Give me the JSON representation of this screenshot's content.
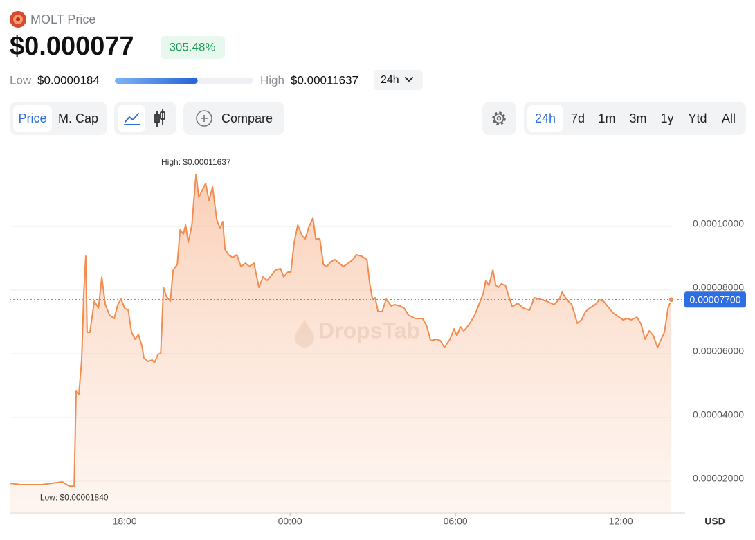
{
  "header": {
    "coin": "MOLT Price",
    "price": "$0.000077",
    "change": "305.48%",
    "low_label": "Low",
    "low": "$0.0000184",
    "high_label": "High",
    "high": "$0.00011637",
    "range_select": "24h"
  },
  "toolbar": {
    "metrics": [
      "Price",
      "M. Cap"
    ],
    "compare": "Compare",
    "ranges": [
      "24h",
      "7d",
      "1m",
      "3m",
      "1y",
      "Ytd",
      "All"
    ]
  },
  "chart_data": {
    "type": "area",
    "color": "#f28c4f",
    "x": [
      13.83,
      14.23,
      14.99,
      15.74,
      15.99,
      16.17,
      16.24,
      16.34,
      16.44,
      16.52,
      16.59,
      16.64,
      16.74,
      16.9,
      17.05,
      17.17,
      17.3,
      17.45,
      17.62,
      17.75,
      17.87,
      18.0,
      18.13,
      18.25,
      18.38,
      18.5,
      18.63,
      18.7,
      18.85,
      19.0,
      19.08,
      19.21,
      19.31,
      19.41,
      19.51,
      19.66,
      19.76,
      19.91,
      20.01,
      20.13,
      20.21,
      20.31,
      20.44,
      20.51,
      20.59,
      20.69,
      20.81,
      20.94,
      21.06,
      21.19,
      21.34,
      21.46,
      21.56,
      21.64,
      21.77,
      21.92,
      22.07,
      22.22,
      22.39,
      22.52,
      22.69,
      22.87,
      23.02,
      23.17,
      23.32,
      23.47,
      23.65,
      23.77,
      23.92,
      24.03,
      24.15,
      24.28,
      24.43,
      24.55,
      24.68,
      24.83,
      24.93,
      25.08,
      25.21,
      25.33,
      25.48,
      25.63,
      25.78,
      25.93,
      26.11,
      26.28,
      26.41,
      26.59,
      26.79,
      26.89,
      26.99,
      27.09,
      27.19,
      27.34,
      27.49,
      27.67,
      27.79,
      27.99,
      28.14,
      28.29,
      28.54,
      28.8,
      28.95,
      29.1,
      29.3,
      29.45,
      29.6,
      29.8,
      29.95,
      30.05,
      30.18,
      30.3,
      30.43,
      30.55,
      30.7,
      30.85,
      31.0,
      31.1,
      31.21,
      31.36,
      31.46,
      31.56,
      31.66,
      31.81,
      31.91,
      32.06,
      32.26,
      32.46,
      32.69,
      32.86,
      33.06,
      33.31,
      33.57,
      33.77,
      33.87,
      34.02,
      34.22,
      34.42,
      34.57,
      34.72,
      34.87,
      35.07,
      35.22,
      35.37,
      35.57,
      35.72,
      35.93,
      36.08,
      36.23,
      36.38,
      36.58,
      36.73,
      36.88,
      37.03,
      37.18,
      37.33,
      37.46,
      37.58,
      37.71,
      37.83
    ],
    "values": [
      1.935e-05,
      1.891e-05,
      1.891e-05,
      1.978e-05,
      1.848e-05,
      1.84e-05,
      4.826e-05,
      4.717e-05,
      5.804e-05,
      7.978e-05,
      9.065e-05,
      6.674e-05,
      6.674e-05,
      7.652e-05,
      7.435e-05,
      8.413e-05,
      7.543e-05,
      7.217e-05,
      7.109e-05,
      7.543e-05,
      7.717e-05,
      7.435e-05,
      7.37e-05,
      6.674e-05,
      6.457e-05,
      6.609e-05,
      6.239e-05,
      5.87e-05,
      5.761e-05,
      5.804e-05,
      5.717e-05,
      5.978e-05,
      6.022e-05,
      8.087e-05,
      7.804e-05,
      7.652e-05,
      8.63e-05,
      8.804e-05,
      9.891e-05,
      9.761e-05,
      0.00010043,
      9.5e-05,
      0.00010043,
      0.00010804,
      0.00011637,
      0.00010913,
      0.0001113,
      0.00011348,
      0.00010804,
      0.00011239,
      0.00010217,
      9.935e-05,
      0.00010152,
      9.283e-05,
      9.109e-05,
      9.022e-05,
      9.109e-05,
      8.739e-05,
      8.848e-05,
      8.739e-05,
      8.848e-05,
      8.087e-05,
      8.413e-05,
      8.304e-05,
      8.457e-05,
      8.63e-05,
      8.674e-05,
      8.413e-05,
      8.565e-05,
      8.565e-05,
      9.5e-05,
      0.00010043,
      9.717e-05,
      9.609e-05,
      9.978e-05,
      0.00010261,
      9.609e-05,
      9.609e-05,
      8.804e-05,
      8.739e-05,
      8.891e-05,
      8.957e-05,
      8.848e-05,
      8.739e-05,
      8.848e-05,
      8.957e-05,
      9.109e-05,
      9.065e-05,
      8.957e-05,
      8.196e-05,
      7.717e-05,
      7.761e-05,
      7.326e-05,
      7.326e-05,
      7.717e-05,
      7.5e-05,
      7.543e-05,
      7.5e-05,
      7.435e-05,
      7.217e-05,
      7.109e-05,
      7.109e-05,
      6.891e-05,
      6.413e-05,
      6.457e-05,
      6.413e-05,
      6.196e-05,
      6.457e-05,
      6.783e-05,
      6.565e-05,
      6.848e-05,
      6.717e-05,
      6.848e-05,
      7e-05,
      7.217e-05,
      7.543e-05,
      7.87e-05,
      8.304e-05,
      8.152e-05,
      8.63e-05,
      8.152e-05,
      8.087e-05,
      8.196e-05,
      8.152e-05,
      7.87e-05,
      7.478e-05,
      7.587e-05,
      7.435e-05,
      7.37e-05,
      7.761e-05,
      7.717e-05,
      7.652e-05,
      7.543e-05,
      7.717e-05,
      7.935e-05,
      7.717e-05,
      7.543e-05,
      6.957e-05,
      7.065e-05,
      7.326e-05,
      7.435e-05,
      7.543e-05,
      7.696e-05,
      7.652e-05,
      7.435e-05,
      7.283e-05,
      7.152e-05,
      7.065e-05,
      7.109e-05,
      7.065e-05,
      7.152e-05,
      6.935e-05,
      6.457e-05,
      6.717e-05,
      6.565e-05,
      6.196e-05,
      6.457e-05,
      6.674e-05,
      7.435e-05,
      7.7e-05
    ],
    "xlim": [
      13.83,
      38.33
    ],
    "xticks": [
      {
        "value": 18,
        "label": "18:00"
      },
      {
        "value": 24,
        "label": "00:00"
      },
      {
        "value": 30,
        "label": "06:00"
      },
      {
        "value": 36,
        "label": "12:00"
      }
    ],
    "ylim": [
      1e-05,
      0.000125
    ],
    "yticks": [
      {
        "value": 2e-05,
        "label": "0.00002000"
      },
      {
        "value": 4e-05,
        "label": "0.00004000"
      },
      {
        "value": 6e-05,
        "label": "0.00006000"
      },
      {
        "value": 8e-05,
        "label": "0.00008000"
      },
      {
        "value": 0.0001,
        "label": "0.00010000"
      }
    ],
    "grid": true,
    "high_label": "High: $0.00011637",
    "low_label": "Low: $0.00001840",
    "last_label": {
      "value": 7.7e-05,
      "label": "0.00007700"
    },
    "currency": "USD",
    "watermark": "DropsTab"
  }
}
